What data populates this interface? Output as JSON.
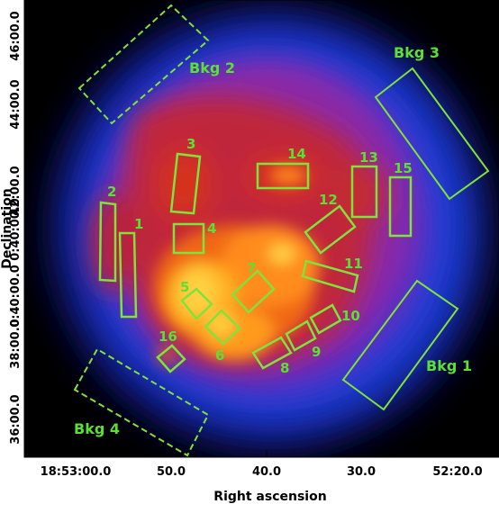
{
  "axes": {
    "xlabel": "Right ascension",
    "ylabel": "Declination",
    "x_ticks": [
      "18:53:00.0",
      "50.0",
      "40.0",
      "30.0",
      "52:20.0"
    ],
    "y_ticks": [
      "46:00.0",
      "44:00.0",
      "42:00.0",
      "0:40:00.0",
      "0:40:00.0",
      "38:00.0",
      "36:00.0"
    ]
  },
  "regions": {
    "source": [
      "1",
      "2",
      "3",
      "4",
      "5",
      "6",
      "7",
      "8",
      "9",
      "10",
      "11",
      "12",
      "13",
      "14",
      "15",
      "16"
    ],
    "background": [
      "Bkg 1",
      "Bkg 2",
      "Bkg 3",
      "Bkg 4"
    ]
  },
  "colors": {
    "region_outline": "#7fe33a",
    "label": "#5be033"
  }
}
